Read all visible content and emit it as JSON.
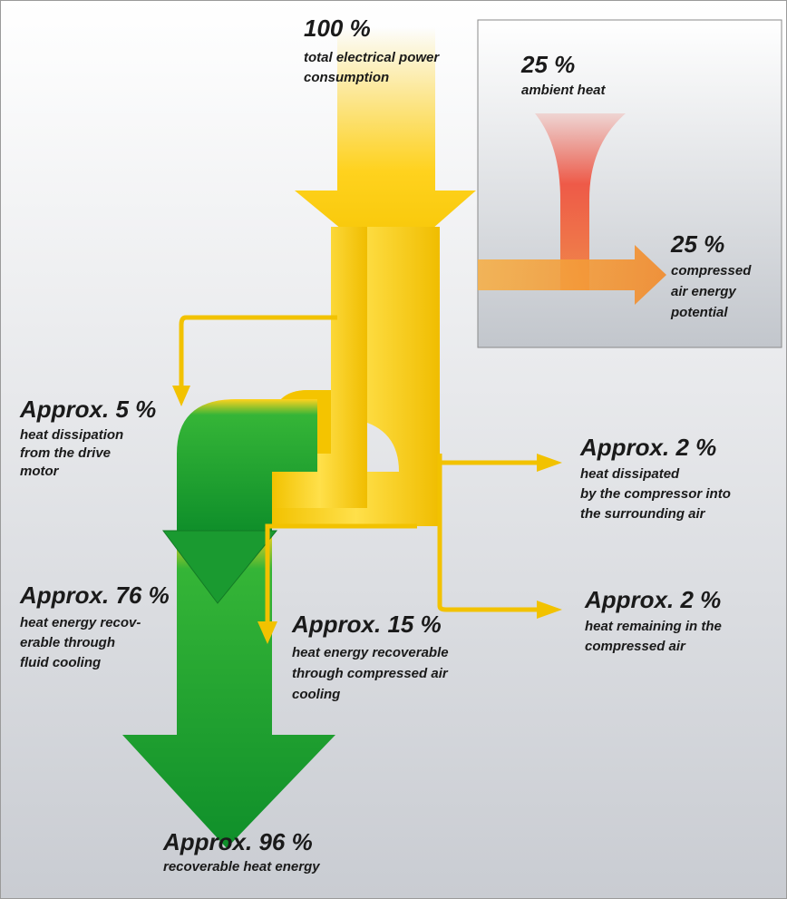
{
  "nodes": [
    {
      "value": "100 %",
      "lines": [
        "total electrical power",
        "consumption"
      ]
    },
    {
      "value": "25 %",
      "lines": [
        "ambient heat"
      ]
    },
    {
      "value": "25 %",
      "lines": [
        "compressed",
        "air energy",
        "potential"
      ]
    },
    {
      "value": "Approx. 5 %",
      "lines": [
        "heat dissipation",
        "from the drive",
        "motor"
      ]
    },
    {
      "value": "Approx. 2 %",
      "lines": [
        "heat dissipated",
        "by the compressor into",
        "the surrounding air"
      ]
    },
    {
      "value": "Approx. 76 %",
      "lines": [
        "heat energy recov-",
        "erable through",
        "fluid cooling"
      ]
    },
    {
      "value": "Approx. 15 %",
      "lines": [
        "heat energy recoverable",
        "through compressed air",
        "cooling"
      ]
    },
    {
      "value": "Approx. 2 %",
      "lines": [
        "heat remaining in the",
        "compressed air"
      ]
    },
    {
      "value": "Approx. 96 %",
      "lines": [
        "recoverable heat energy"
      ]
    }
  ]
}
